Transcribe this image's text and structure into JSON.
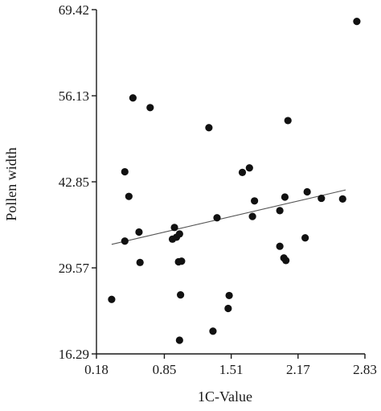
{
  "chart_data": {
    "type": "scatter",
    "title": "",
    "xlabel": "1C-Value",
    "ylabel": "Pollen width",
    "xlim": [
      0.18,
      2.83
    ],
    "ylim": [
      16.29,
      69.42
    ],
    "xticks": [
      "0.18",
      "0.85",
      "1.51",
      "2.17",
      "2.83"
    ],
    "yticks": [
      "16.29",
      "29.57",
      "42.85",
      "56.13",
      "69.42"
    ],
    "grid": false,
    "legend": "none",
    "point_color": "#111111",
    "trendline": {
      "type": "linear",
      "x": [
        0.33,
        2.64
      ],
      "y": [
        33.2,
        41.6
      ],
      "color": "#555555"
    },
    "points": [
      {
        "x": 0.33,
        "y": 24.7
      },
      {
        "x": 0.46,
        "y": 33.7
      },
      {
        "x": 0.46,
        "y": 44.4
      },
      {
        "x": 0.5,
        "y": 40.6
      },
      {
        "x": 0.54,
        "y": 55.8
      },
      {
        "x": 0.6,
        "y": 35.1
      },
      {
        "x": 0.61,
        "y": 30.4
      },
      {
        "x": 0.71,
        "y": 54.3
      },
      {
        "x": 0.93,
        "y": 34.0
      },
      {
        "x": 0.95,
        "y": 35.8
      },
      {
        "x": 0.97,
        "y": 34.3
      },
      {
        "x": 0.99,
        "y": 30.5
      },
      {
        "x": 1.0,
        "y": 34.8
      },
      {
        "x": 1.0,
        "y": 18.4
      },
      {
        "x": 1.01,
        "y": 25.4
      },
      {
        "x": 1.02,
        "y": 30.6
      },
      {
        "x": 1.29,
        "y": 51.2
      },
      {
        "x": 1.33,
        "y": 19.8
      },
      {
        "x": 1.37,
        "y": 37.3
      },
      {
        "x": 1.48,
        "y": 23.3
      },
      {
        "x": 1.49,
        "y": 25.3
      },
      {
        "x": 1.62,
        "y": 44.3
      },
      {
        "x": 1.69,
        "y": 45.0
      },
      {
        "x": 1.72,
        "y": 37.5
      },
      {
        "x": 1.74,
        "y": 39.9
      },
      {
        "x": 1.99,
        "y": 38.4
      },
      {
        "x": 1.99,
        "y": 32.9
      },
      {
        "x": 2.03,
        "y": 31.1
      },
      {
        "x": 2.04,
        "y": 40.5
      },
      {
        "x": 2.05,
        "y": 30.7
      },
      {
        "x": 2.07,
        "y": 52.3
      },
      {
        "x": 2.24,
        "y": 34.2
      },
      {
        "x": 2.26,
        "y": 41.3
      },
      {
        "x": 2.4,
        "y": 40.3
      },
      {
        "x": 2.61,
        "y": 40.2
      },
      {
        "x": 2.75,
        "y": 67.6
      }
    ]
  }
}
